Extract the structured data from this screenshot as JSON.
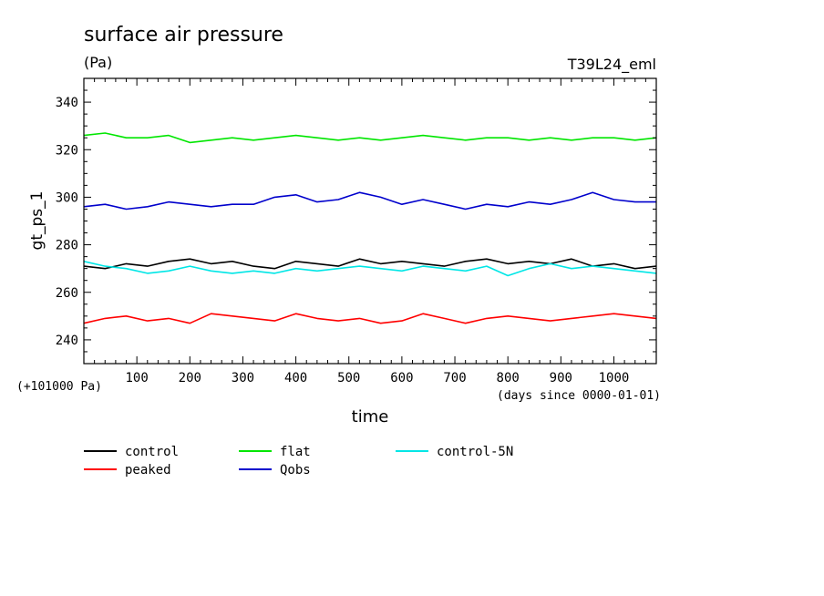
{
  "chart_data": {
    "type": "line",
    "title": "surface air pressure",
    "units": "(Pa)",
    "run_label": "T39L24_eml",
    "ylabel": "gt_ps_1",
    "xlabel": "time",
    "x_units_note": "(days since 0000-01-01)",
    "y_offset_note": "(+101000 Pa)",
    "xlim": [
      0,
      1080
    ],
    "ylim": [
      230,
      350
    ],
    "x_ticks": [
      100,
      200,
      300,
      400,
      500,
      600,
      700,
      800,
      900,
      1000
    ],
    "x_tick_labels": [
      "100",
      "200",
      "300",
      "400",
      "500",
      "600",
      "700",
      "800",
      "900",
      "1000"
    ],
    "y_ticks": [
      240,
      260,
      280,
      300,
      320,
      340
    ],
    "y_tick_labels": [
      "240",
      "260",
      "280",
      "300",
      "320",
      "340"
    ],
    "grid": false,
    "legend_position": "bottom",
    "x": [
      0,
      40,
      80,
      120,
      160,
      200,
      240,
      280,
      320,
      360,
      400,
      440,
      480,
      520,
      560,
      600,
      640,
      680,
      720,
      760,
      800,
      840,
      880,
      920,
      960,
      1000,
      1040,
      1080
    ],
    "series": [
      {
        "name": "control",
        "color": "#000000",
        "values": [
          271,
          270,
          272,
          271,
          273,
          274,
          272,
          273,
          271,
          270,
          273,
          272,
          271,
          274,
          272,
          273,
          272,
          271,
          273,
          274,
          272,
          273,
          272,
          274,
          271,
          272,
          270,
          271
        ]
      },
      {
        "name": "peaked",
        "color": "#ff0000",
        "values": [
          247,
          249,
          250,
          248,
          249,
          247,
          251,
          250,
          249,
          248,
          251,
          249,
          248,
          249,
          247,
          248,
          251,
          249,
          247,
          249,
          250,
          249,
          248,
          249,
          250,
          251,
          250,
          249
        ]
      },
      {
        "name": "flat",
        "color": "#00e600",
        "values": [
          326,
          327,
          325,
          325,
          326,
          323,
          324,
          325,
          324,
          325,
          326,
          325,
          324,
          325,
          324,
          325,
          326,
          325,
          324,
          325,
          325,
          324,
          325,
          324,
          325,
          325,
          324,
          325
        ]
      },
      {
        "name": "Qobs",
        "color": "#0000cc",
        "values": [
          296,
          297,
          295,
          296,
          298,
          297,
          296,
          297,
          297,
          300,
          301,
          298,
          299,
          302,
          300,
          297,
          299,
          297,
          295,
          297,
          296,
          298,
          297,
          299,
          302,
          299,
          298,
          298
        ]
      },
      {
        "name": "control-5N",
        "color": "#00e6e6",
        "values": [
          273,
          271,
          270,
          268,
          269,
          271,
          269,
          268,
          269,
          268,
          270,
          269,
          270,
          271,
          270,
          269,
          271,
          270,
          269,
          271,
          267,
          270,
          272,
          270,
          271,
          270,
          269,
          268
        ]
      }
    ]
  }
}
